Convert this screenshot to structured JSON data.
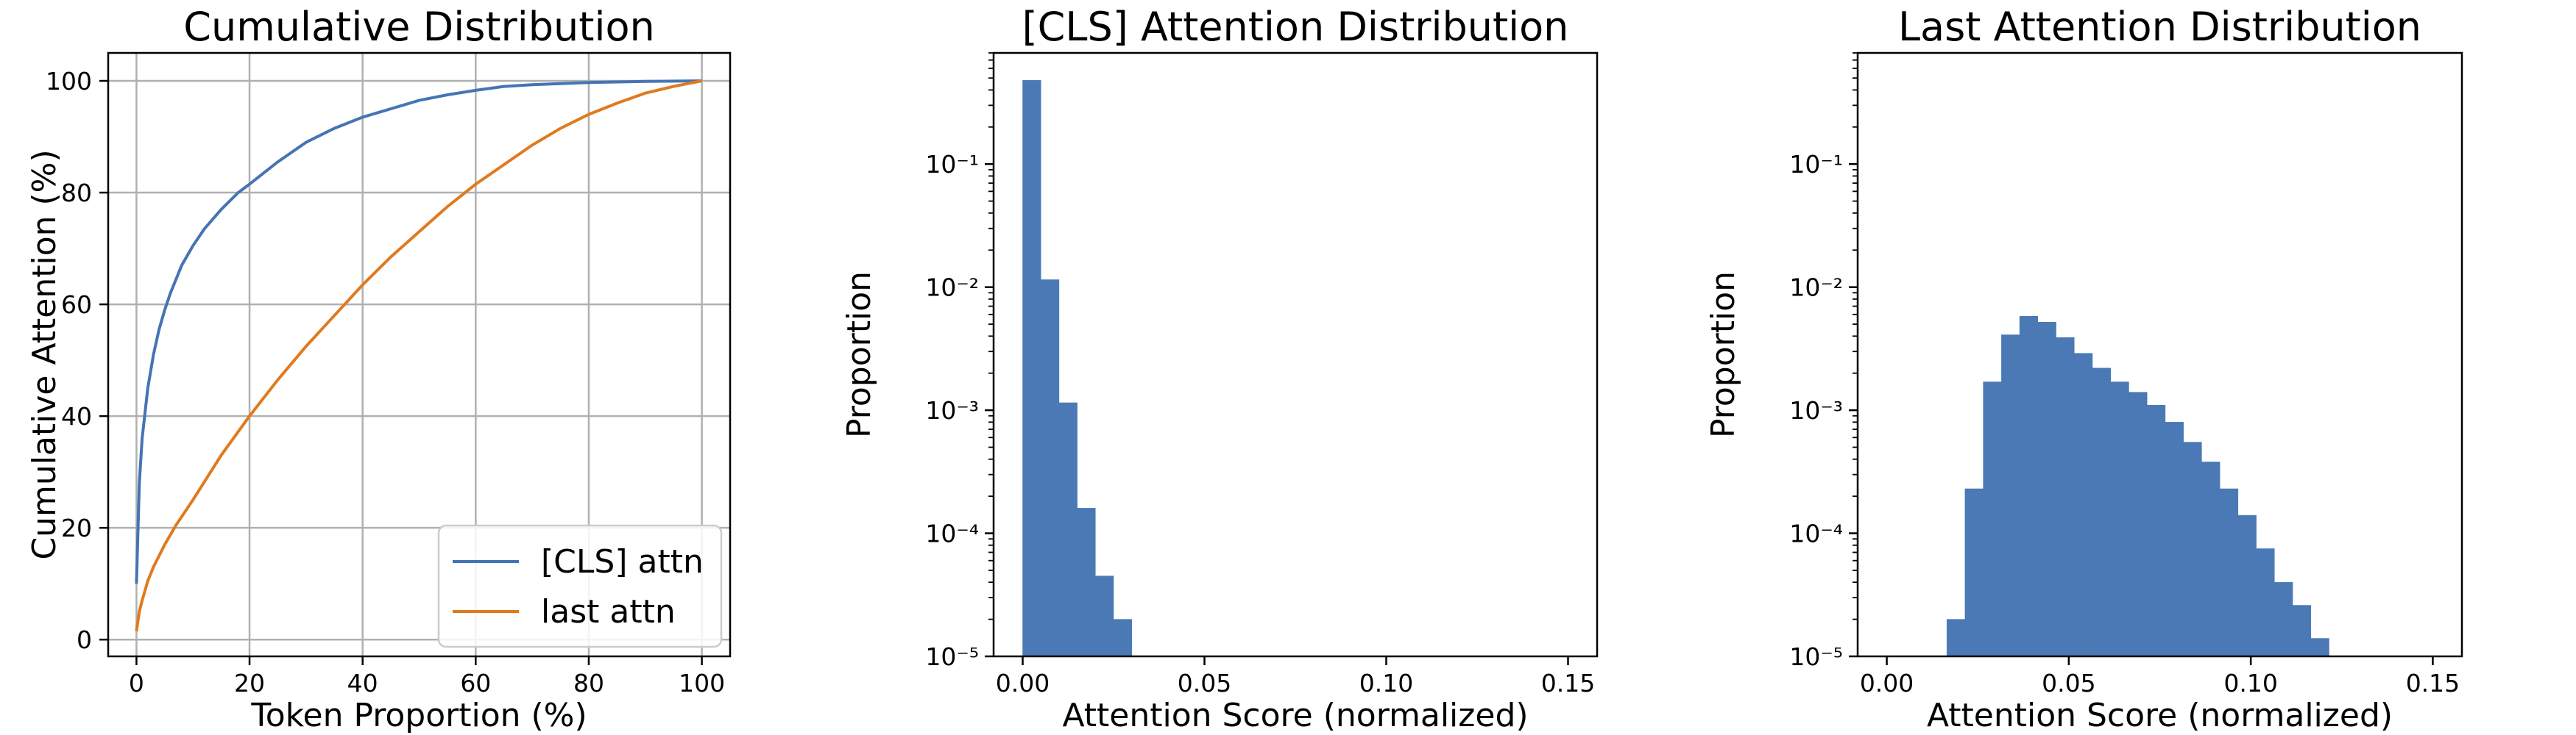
{
  "colors": {
    "cls": "#4574b4",
    "last": "#e07a1f",
    "bar": "#4a79b5",
    "grid": "#b0b0b0",
    "axis": "#000000"
  },
  "chart_data": [
    {
      "type": "line",
      "title": "Cumulative Distribution",
      "xlabel": "Token Proportion (%)",
      "ylabel": "Cumulative Attention (%)",
      "xlim": [
        -5,
        105
      ],
      "ylim": [
        -3,
        105
      ],
      "xticks": [
        0,
        20,
        40,
        60,
        80,
        100
      ],
      "yticks": [
        0,
        20,
        40,
        60,
        80,
        100
      ],
      "grid": true,
      "legend_position": "lower-right",
      "series": [
        {
          "name": "[CLS] attn",
          "color": "#4574b4",
          "x": [
            0,
            0.5,
            1,
            2,
            3,
            4,
            5,
            6,
            8,
            10,
            12,
            15,
            18,
            20,
            25,
            30,
            35,
            40,
            45,
            50,
            55,
            60,
            65,
            70,
            75,
            80,
            85,
            90,
            95,
            100
          ],
          "y": [
            10,
            28,
            36,
            45,
            51,
            55.5,
            59,
            62,
            67,
            70.5,
            73.5,
            77,
            80,
            81.5,
            85.5,
            89,
            91.5,
            93.5,
            95,
            96.5,
            97.5,
            98.3,
            99,
            99.3,
            99.5,
            99.7,
            99.8,
            99.9,
            99.95,
            100
          ]
        },
        {
          "name": "last attn",
          "color": "#e07a1f",
          "x": [
            0,
            0.5,
            1,
            2,
            3,
            5,
            7,
            10,
            15,
            20,
            25,
            30,
            35,
            40,
            45,
            50,
            55,
            60,
            65,
            70,
            75,
            80,
            85,
            90,
            95,
            100
          ],
          "y": [
            1.5,
            5,
            7,
            10.5,
            13,
            17,
            20.5,
            25,
            33,
            40,
            46.5,
            52.5,
            58,
            63.5,
            68.5,
            73,
            77.5,
            81.5,
            85,
            88.5,
            91.5,
            94,
            96,
            97.8,
            99,
            100
          ]
        }
      ]
    },
    {
      "type": "bar",
      "title": "[CLS] Attention Distribution",
      "xlabel": "Attention Score (normalized)",
      "ylabel": "Proportion",
      "xlim": [
        -0.008,
        0.158
      ],
      "ylim": [
        1e-05,
        0.8
      ],
      "yscale": "log",
      "xticks": [
        "0.00",
        "0.05",
        "0.10",
        "0.15"
      ],
      "yticks": [
        "10⁻⁵",
        "10⁻⁴",
        "10⁻³",
        "10⁻²",
        "10⁻¹"
      ],
      "bin_width": 0.005,
      "bins_start": [
        0.0,
        0.005,
        0.01,
        0.015,
        0.02,
        0.025
      ],
      "values": [
        0.48,
        0.0115,
        0.00115,
        0.00016,
        4.5e-05,
        2e-05
      ]
    },
    {
      "type": "bar",
      "title": "Last Attention Distribution",
      "xlabel": "Attention Score (normalized)",
      "ylabel": "Proportion",
      "xlim": [
        -0.008,
        0.158
      ],
      "ylim": [
        1e-05,
        0.8
      ],
      "yscale": "log",
      "xticks": [
        "0.00",
        "0.05",
        "0.10",
        "0.15"
      ],
      "yticks": [
        "10⁻⁵",
        "10⁻⁴",
        "10⁻³",
        "10⁻²",
        "10⁻¹"
      ],
      "bin_width": 0.005,
      "bins_start": [
        0.0165,
        0.0215,
        0.0265,
        0.0315,
        0.0365,
        0.0415,
        0.0465,
        0.0515,
        0.0565,
        0.0615,
        0.0665,
        0.0715,
        0.0765,
        0.0815,
        0.0865,
        0.0915,
        0.0965,
        0.1015,
        0.1065,
        0.1115,
        0.1165
      ],
      "values": [
        2e-05,
        0.00023,
        0.0017,
        0.0041,
        0.0058,
        0.0052,
        0.0039,
        0.0029,
        0.0022,
        0.0017,
        0.0014,
        0.0011,
        0.0008,
        0.00055,
        0.00038,
        0.00023,
        0.00014,
        7.5e-05,
        4e-05,
        2.6e-05,
        1.4e-05
      ]
    }
  ]
}
